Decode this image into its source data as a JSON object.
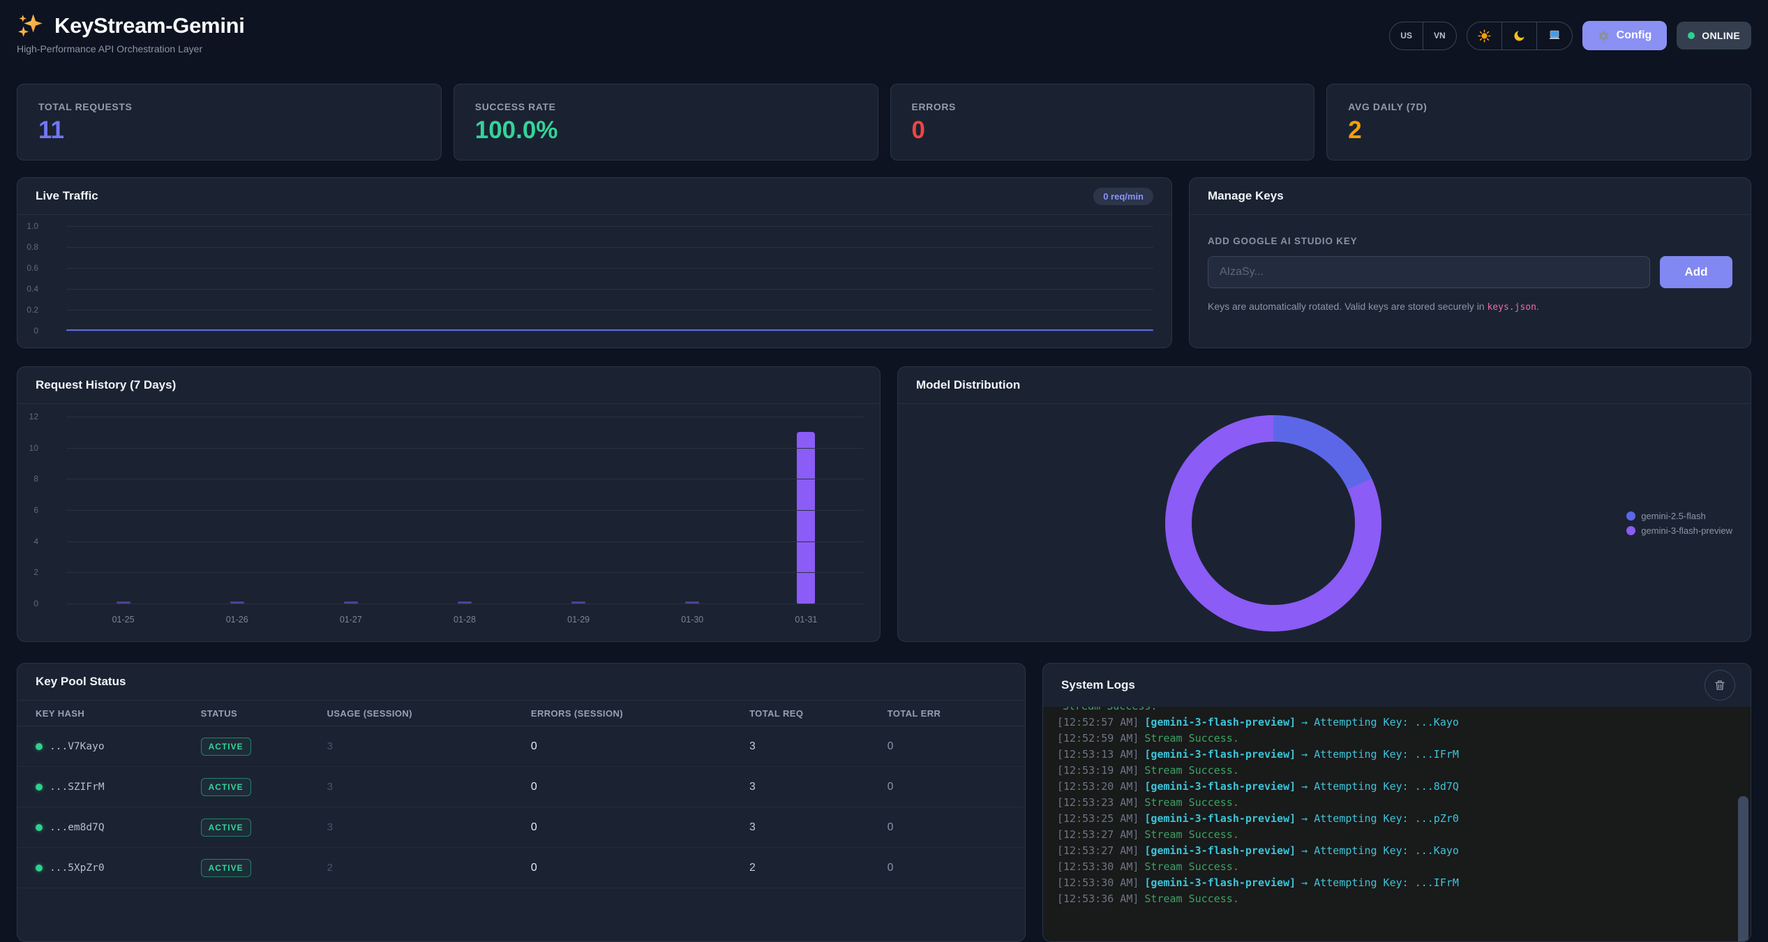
{
  "header": {
    "title": "KeyStream-Gemini",
    "subtitle": "High-Performance API Orchestration Layer",
    "lang_options": [
      "US",
      "VN"
    ],
    "theme_options": [
      "light",
      "dark",
      "system"
    ],
    "config_label": "Config",
    "status_label": "ONLINE",
    "accent_color": "#8b90f4"
  },
  "stats": [
    {
      "label": "TOTAL REQUESTS",
      "value": "11",
      "color": "#7277f2"
    },
    {
      "label": "SUCCESS RATE",
      "value": "100.0%",
      "color": "#34d399"
    },
    {
      "label": "ERRORS",
      "value": "0",
      "color": "#ef4444"
    },
    {
      "label": "AVG DAILY (7D)",
      "value": "2",
      "color": "#f59e0b"
    }
  ],
  "live_traffic": {
    "title": "Live Traffic",
    "badge": "0 req/min"
  },
  "manage_keys": {
    "title": "Manage Keys",
    "input_label": "ADD GOOGLE AI STUDIO KEY",
    "input_placeholder": "AIzaSy...",
    "add_button": "Add",
    "note_text": "Keys are automatically rotated. Valid keys are stored securely in ",
    "note_code": "keys.json",
    "note_suffix": "."
  },
  "request_history": {
    "title": "Request History (7 Days)"
  },
  "model_distribution": {
    "title": "Model Distribution"
  },
  "key_pool": {
    "title": "Key Pool Status",
    "headers": [
      "KEY HASH",
      "STATUS",
      "USAGE (SESSION)",
      "ERRORS (SESSION)",
      "TOTAL REQ",
      "TOTAL ERR"
    ],
    "rows": [
      {
        "hash": "...V7Kayo",
        "status": "ACTIVE",
        "usage": "3",
        "errors": "0",
        "total_req": "3",
        "total_err": "0"
      },
      {
        "hash": "...SZIFrM",
        "status": "ACTIVE",
        "usage": "3",
        "errors": "0",
        "total_req": "3",
        "total_err": "0"
      },
      {
        "hash": "...em8d7Q",
        "status": "ACTIVE",
        "usage": "3",
        "errors": "0",
        "total_req": "3",
        "total_err": "0"
      },
      {
        "hash": "...5XpZr0",
        "status": "ACTIVE",
        "usage": "2",
        "errors": "0",
        "total_req": "2",
        "total_err": "0"
      }
    ]
  },
  "system_logs": {
    "title": "System Logs",
    "entries": [
      {
        "time": "",
        "message": "Stream Success.",
        "type": "success",
        "partial": true
      },
      {
        "time": "[12:52:57 AM]",
        "model": "[gemini-3-flash-preview]",
        "message": "→ Attempting Key: ...Kayo",
        "type": "attempt"
      },
      {
        "time": "[12:52:59 AM]",
        "message": "Stream Success.",
        "type": "success"
      },
      {
        "time": "[12:53:13 AM]",
        "model": "[gemini-3-flash-preview]",
        "message": "→ Attempting Key: ...IFrM",
        "type": "attempt"
      },
      {
        "time": "[12:53:19 AM]",
        "message": "Stream Success.",
        "type": "success"
      },
      {
        "time": "[12:53:20 AM]",
        "model": "[gemini-3-flash-preview]",
        "message": "→ Attempting Key: ...8d7Q",
        "type": "attempt"
      },
      {
        "time": "[12:53:23 AM]",
        "message": "Stream Success.",
        "type": "success"
      },
      {
        "time": "[12:53:25 AM]",
        "model": "[gemini-3-flash-preview]",
        "message": "→ Attempting Key: ...pZr0",
        "type": "attempt"
      },
      {
        "time": "[12:53:27 AM]",
        "message": "Stream Success.",
        "type": "success"
      },
      {
        "time": "[12:53:27 AM]",
        "model": "[gemini-3-flash-preview]",
        "message": "→ Attempting Key: ...Kayo",
        "type": "attempt"
      },
      {
        "time": "[12:53:30 AM]",
        "message": "Stream Success.",
        "type": "success"
      },
      {
        "time": "[12:53:30 AM]",
        "model": "[gemini-3-flash-preview]",
        "message": "→ Attempting Key: ...IFrM",
        "type": "attempt"
      },
      {
        "time": "[12:53:36 AM]",
        "message": "Stream Success.",
        "type": "success"
      }
    ]
  },
  "chart_data": [
    {
      "id": "live_traffic",
      "type": "line",
      "title": "Live Traffic",
      "series": [
        {
          "name": "req/min",
          "values": [
            0
          ],
          "note": "flat line at zero across full width"
        }
      ],
      "yticks": [
        1.0,
        0.8,
        0.6,
        0.4,
        0.2,
        0
      ],
      "ylim": [
        0,
        1
      ],
      "xlabel": "",
      "ylabel": "",
      "line_color": "#5d66e8",
      "grid": true,
      "legend": false
    },
    {
      "id": "request_history",
      "type": "bar",
      "title": "Request History (7 Days)",
      "categories": [
        "01-25",
        "01-26",
        "01-27",
        "01-28",
        "01-29",
        "01-30",
        "01-31"
      ],
      "values": [
        0,
        0,
        0,
        0,
        0,
        0,
        11
      ],
      "yticks": [
        0,
        2,
        4,
        6,
        8,
        10,
        12
      ],
      "ylim": [
        0,
        12
      ],
      "xlabel": "",
      "ylabel": "",
      "bar_color": "#8b5cf6",
      "grid": true,
      "legend": false
    },
    {
      "id": "model_distribution",
      "type": "pie",
      "title": "Model Distribution",
      "labels": [
        "gemini-2.5-flash",
        "gemini-3-flash-preview"
      ],
      "values": [
        2,
        9
      ],
      "colors": [
        "#5c67e8",
        "#8b5cf6"
      ],
      "donut": true,
      "legend_position": "right"
    }
  ]
}
